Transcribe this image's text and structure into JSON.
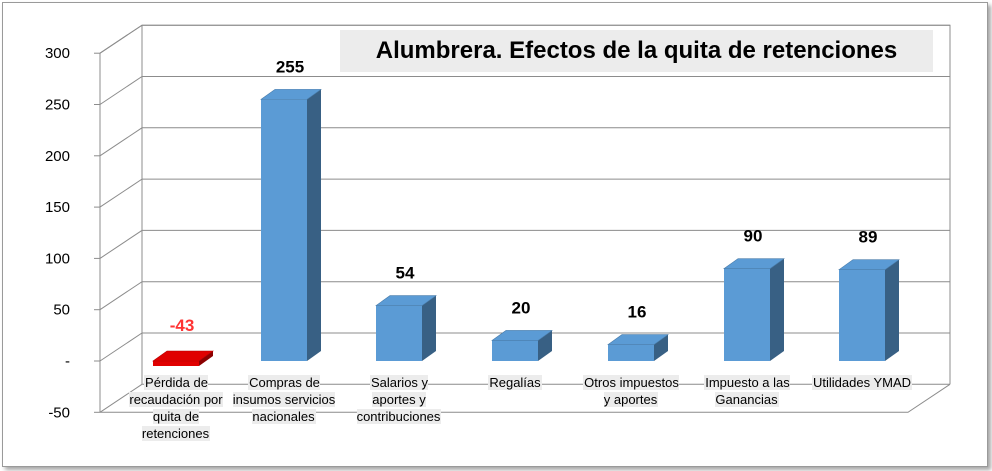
{
  "chart_data": {
    "type": "bar",
    "title": "Alumbrera. Efectos de la quita de retenciones",
    "categories": [
      "Pérdida de recaudación por quita de retenciones",
      "Compras de insumos servicios nacionales",
      "Salarios y aportes y contribuciones",
      "Regalías",
      "Otros impuestos y aportes",
      "Impuesto a las Ganancias",
      "Utilidades YMAD"
    ],
    "values": [
      -43,
      255,
      54,
      20,
      16,
      90,
      89
    ],
    "value_labels": [
      "-43",
      "255",
      "54",
      "20",
      "16",
      "90",
      "89"
    ],
    "yticks": [
      300,
      250,
      200,
      150,
      100,
      50,
      0,
      -50
    ],
    "ytick_labels": [
      "300",
      "250",
      "200",
      "150",
      "100",
      "50",
      "-",
      "-50"
    ],
    "ylim": [
      -50,
      300
    ],
    "grid": true,
    "colors": {
      "positive": "#5b9bd5",
      "negative": "#e00000",
      "negative_label": "#ff3333"
    }
  }
}
